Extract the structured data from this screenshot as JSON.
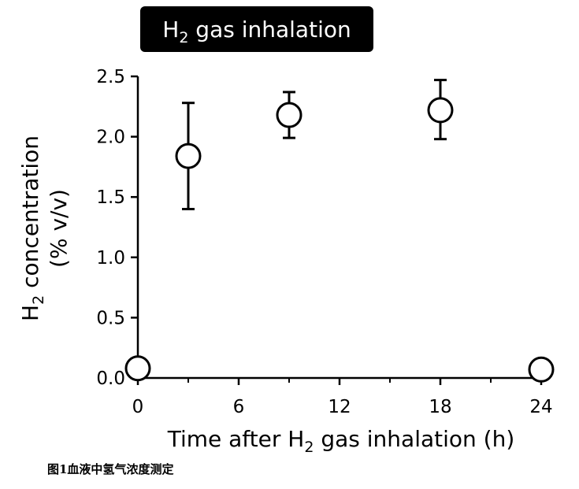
{
  "chart_data": {
    "type": "scatter",
    "title": {
      "main": "H",
      "sub": "2",
      "rest": " gas inhalation"
    },
    "xlabel": {
      "main": "Time after H",
      "sub": "2",
      "rest": " gas inhalation (h)"
    },
    "ylabel": {
      "line1_main": "H",
      "line1_sub": "2",
      "line1_rest": " concentration",
      "line2": "(% v/v)"
    },
    "xlim": [
      0,
      24
    ],
    "ylim": [
      0,
      2.5
    ],
    "x_ticks": [
      0,
      6,
      12,
      18,
      24
    ],
    "x_tick_labels": [
      "0",
      "6",
      "12",
      "18",
      "24"
    ],
    "x_minor_ticks": [
      3,
      9,
      15,
      21
    ],
    "y_ticks": [
      0,
      0.5,
      1.0,
      1.5,
      2.0,
      2.5
    ],
    "y_tick_labels": [
      "0.0",
      "0.5",
      "1.0",
      "1.5",
      "2.0",
      "2.5"
    ],
    "grid": false,
    "points": [
      {
        "x": 0,
        "y": 0.08,
        "err_low": null,
        "err_high": null
      },
      {
        "x": 3,
        "y": 1.84,
        "err_low": 1.4,
        "err_high": 2.28
      },
      {
        "x": 9,
        "y": 2.18,
        "err_low": 1.99,
        "err_high": 2.37
      },
      {
        "x": 18,
        "y": 2.22,
        "err_low": 1.98,
        "err_high": 2.47
      },
      {
        "x": 24,
        "y": 0.07,
        "err_low": null,
        "err_high": null
      }
    ],
    "marker": {
      "shape": "open-circle",
      "stroke": "#000000",
      "fill": "#ffffff"
    }
  },
  "caption": "图1血液中氢气浓度测定"
}
